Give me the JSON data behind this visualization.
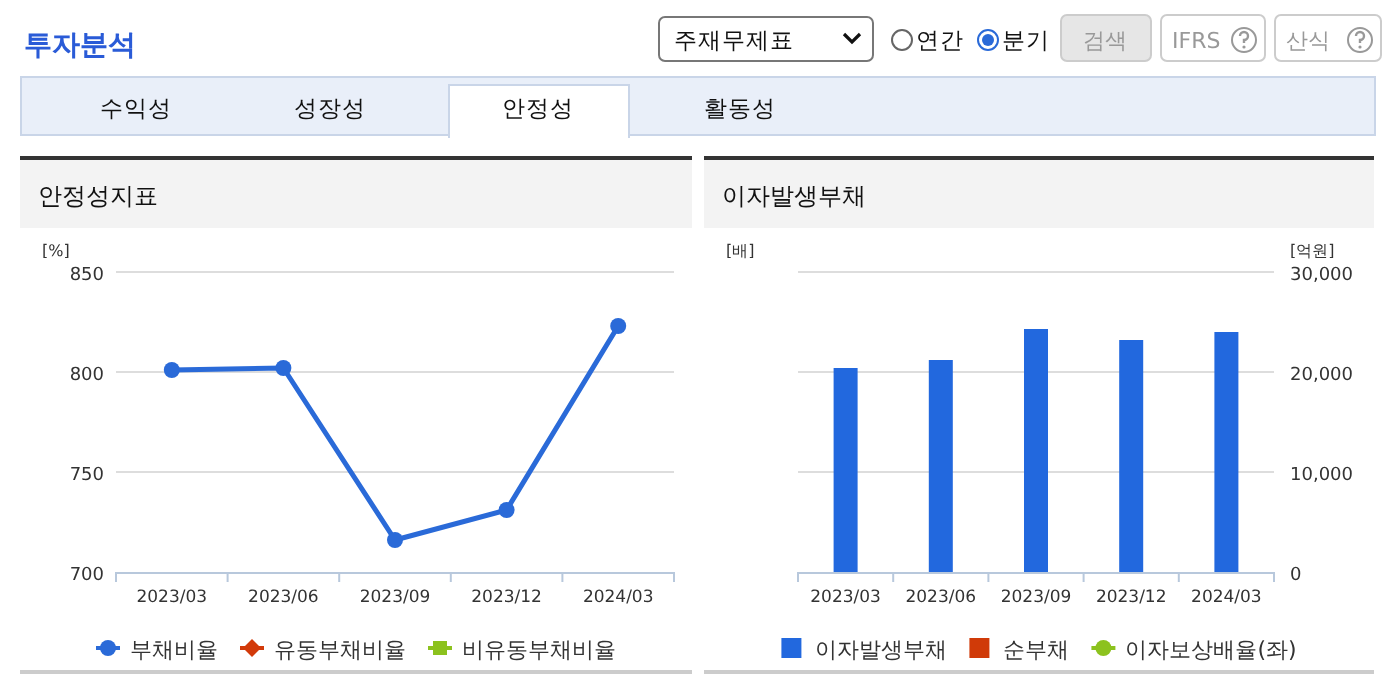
{
  "chart_data": [
    {
      "type": "other",
      "title": "투자분석",
      "annotations": [
        "주재무제표",
        "연간",
        "분기",
        "검색",
        "IFRS",
        "산식",
        "수익성",
        "성장성",
        "안정성",
        "활동성"
      ]
    },
    {
      "type": "line",
      "title": "안정성지표",
      "ylabel": "[%]",
      "categories": [
        "2023/03",
        "2023/06",
        "2023/09",
        "2023/12",
        "2024/03"
      ],
      "ylim": [
        700,
        850
      ],
      "yticks": [
        700,
        750,
        800,
        850
      ],
      "grid": "y",
      "legend": "bottom",
      "series": [
        {
          "name": "부채비율",
          "color": "#2a6ad8",
          "marker": "circle",
          "values": [
            801,
            802,
            716,
            731,
            823
          ]
        },
        {
          "name": "유동부채비율",
          "color": "#d23a0a",
          "marker": "diamond",
          "values": [
            null,
            null,
            null,
            null,
            null
          ]
        },
        {
          "name": "비유동부채비율",
          "color": "#8cc21e",
          "marker": "square",
          "values": [
            null,
            null,
            null,
            null,
            null
          ]
        }
      ]
    },
    {
      "type": "bar",
      "title": "이자발생부채",
      "ylabel": "[배]",
      "y2label": "[억원]",
      "categories": [
        "2023/03",
        "2023/06",
        "2023/09",
        "2023/12",
        "2024/03"
      ],
      "y2lim": [
        0,
        30000
      ],
      "y2ticks": [
        0,
        {
          "value": 10000,
          "label": "10,000"
        },
        {
          "value": 20000,
          "label": "20,000"
        },
        {
          "value": 30000,
          "label": "30,000"
        }
      ],
      "grid": "y",
      "legend": "bottom",
      "series": [
        {
          "name": "이자발생부채",
          "color": "#2268de",
          "axis": "y2",
          "values": [
            20400,
            21200,
            24300,
            23200,
            24000
          ]
        },
        {
          "name": "순부채",
          "color": "#d03a08",
          "axis": "y2",
          "values": [
            null,
            null,
            null,
            null,
            null
          ]
        },
        {
          "name": "이자보상배율(좌)",
          "type": "line",
          "marker": "circle",
          "color": "#8cc21e",
          "values": [
            null,
            null,
            null,
            null,
            null
          ]
        }
      ]
    }
  ]
}
